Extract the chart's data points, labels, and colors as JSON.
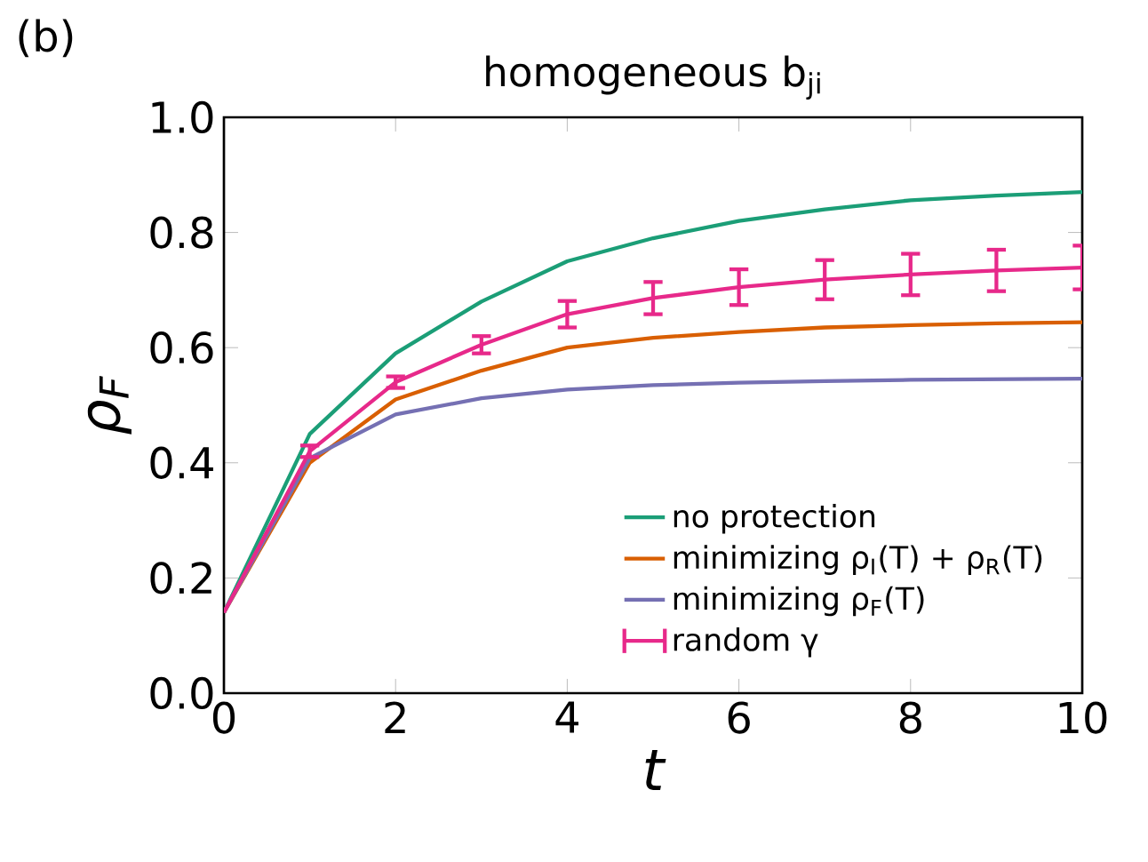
{
  "chart_data": {
    "type": "line",
    "title": "homogeneous b$_{ji}$",
    "xlabel": "t",
    "ylabel": "ρ$_{F}$",
    "annotations": [
      "(b)"
    ],
    "x": [
      0,
      1,
      2,
      3,
      4,
      5,
      6,
      7,
      8,
      9,
      10
    ],
    "xlim": [
      0,
      10
    ],
    "ylim": [
      0,
      1
    ],
    "xticks": [
      0,
      2,
      4,
      6,
      8,
      10
    ],
    "yticks": [
      {
        "value": 0,
        "label": "0.0"
      },
      {
        "value": 0.2,
        "label": "0.2"
      },
      {
        "value": 0.4,
        "label": "0.4"
      },
      {
        "value": 0.6,
        "label": "0.6"
      },
      {
        "value": 0.8,
        "label": "0.8"
      },
      {
        "value": 1,
        "label": "1.0"
      }
    ],
    "legend": "bottom right",
    "series": [
      {
        "name": "no protection",
        "color": "#1b9e77",
        "values": [
          0.14,
          0.45,
          0.59,
          0.68,
          0.75,
          0.79,
          0.82,
          0.84,
          0.856,
          0.864,
          0.87
        ]
      },
      {
        "name": "minimizing ρ$_{I}$(T) + ρ$_{R}$(T)",
        "color": "#d95f02",
        "values": [
          0.14,
          0.4,
          0.51,
          0.56,
          0.6,
          0.617,
          0.627,
          0.635,
          0.639,
          0.642,
          0.644
        ]
      },
      {
        "name": "minimizing ρ$_{F}$(T)",
        "color": "#7570b3",
        "values": [
          0.14,
          0.408,
          0.484,
          0.512,
          0.527,
          0.535,
          0.539,
          0.542,
          0.544,
          0.545,
          0.546
        ]
      },
      {
        "name": "random γ",
        "color": "#e7298a",
        "values": [
          0.14,
          0.42,
          0.54,
          0.605,
          0.658,
          0.686,
          0.705,
          0.718,
          0.727,
          0.734,
          0.739
        ],
        "errors": [
          null,
          0.01,
          0.01,
          0.015,
          0.023,
          0.028,
          0.031,
          0.034,
          0.036,
          0.036,
          0.038
        ]
      }
    ]
  }
}
